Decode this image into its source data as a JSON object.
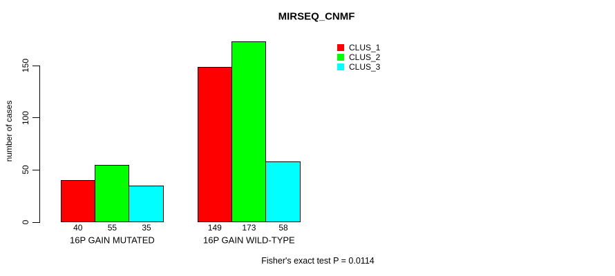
{
  "chart_data": {
    "type": "bar",
    "title": "MIRSEQ_CNMF",
    "ylabel": "number of cases",
    "xlabel": "",
    "categories": [
      "16P GAIN MUTATED",
      "16P GAIN WILD-TYPE"
    ],
    "series": [
      {
        "name": "CLUS_1",
        "color": "#ff0000",
        "values": [
          40,
          149
        ]
      },
      {
        "name": "CLUS_2",
        "color": "#00ff00",
        "values": [
          55,
          173
        ]
      },
      {
        "name": "CLUS_3",
        "color": "#00ffff",
        "values": [
          35,
          58
        ]
      }
    ],
    "bar_value_labels_shown": true,
    "yticks": [
      0,
      50,
      100,
      150
    ],
    "ylim": [
      0,
      150
    ],
    "grid": false,
    "legend_position": "top-right",
    "annotation": "Fisher's exact test P = 0.0114",
    "bar_border_color": "#000000",
    "axis_color": "#000000",
    "background_color": "#ffffff",
    "text_color": "#000000"
  }
}
